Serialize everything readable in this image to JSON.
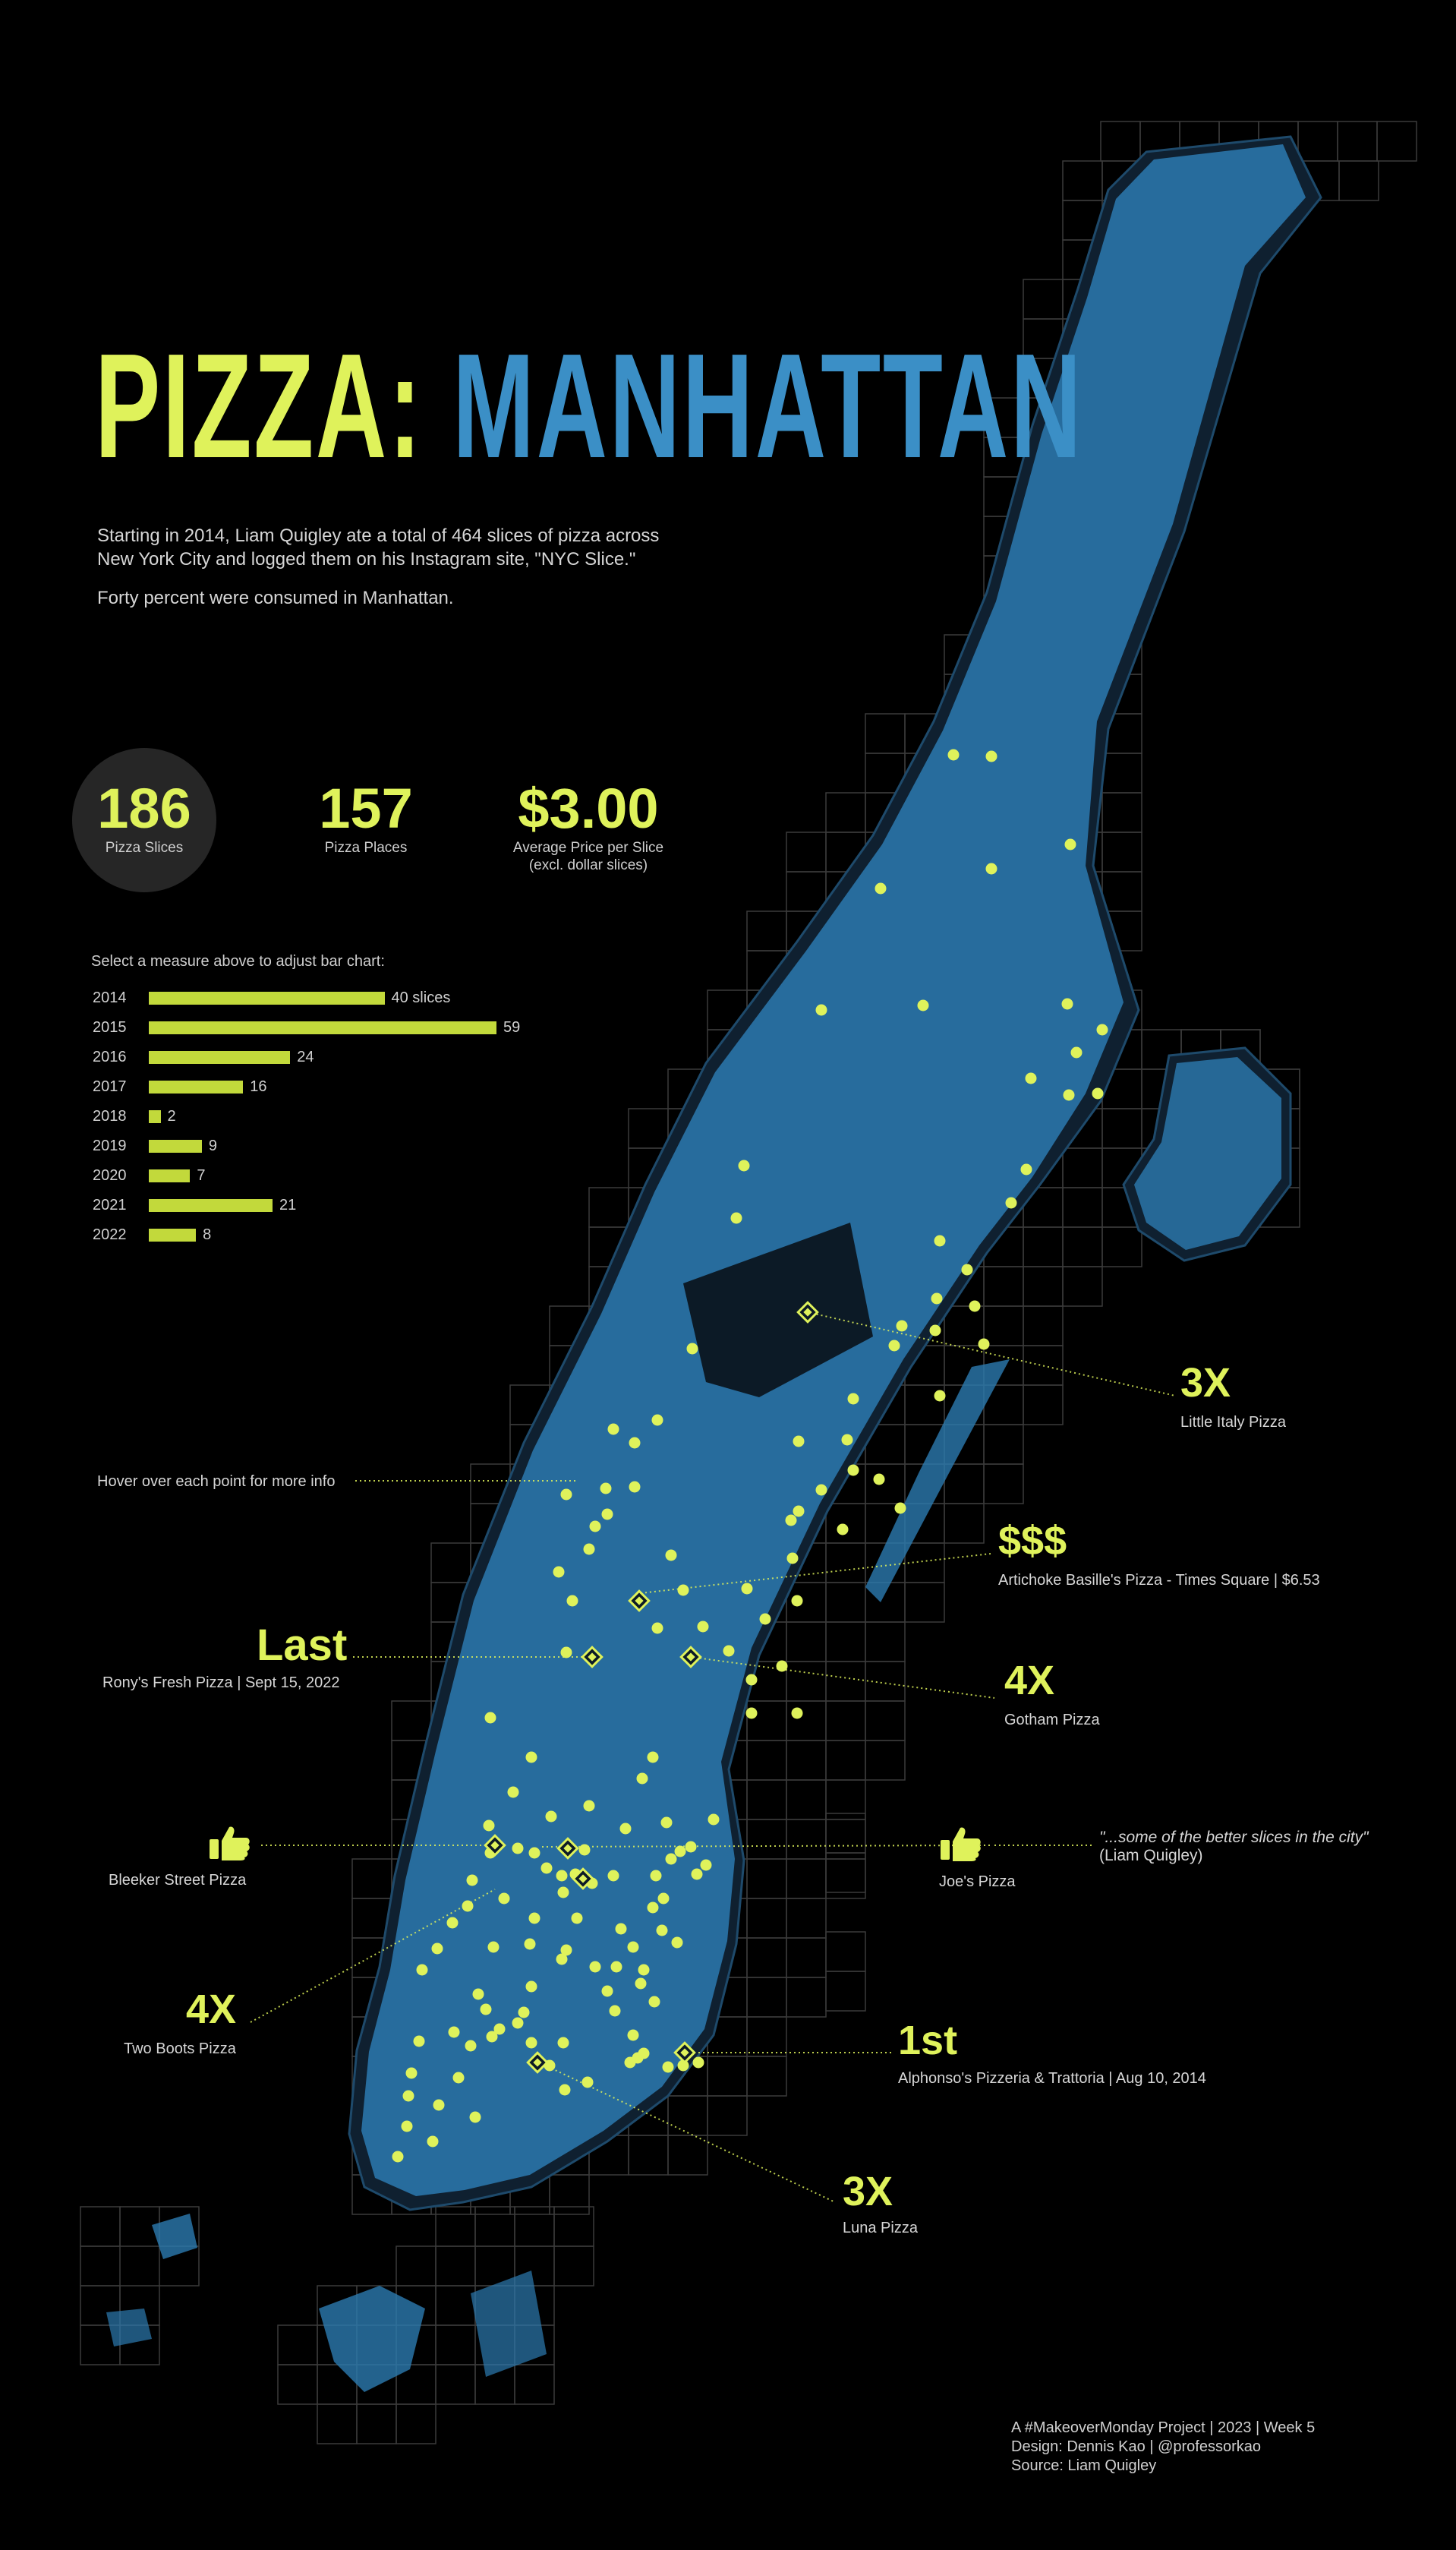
{
  "title": {
    "part1": "PIZZA:",
    "part2": "MANHATTAN"
  },
  "intro": {
    "line1": "Starting in 2014, Liam Quigley ate a total of 464 slices of pizza across",
    "line2": "New York City and logged them on his Instagram site, \"NYC Slice.\"",
    "line3": "Forty percent were consumed in Manhattan."
  },
  "kpis": [
    {
      "value": "186",
      "label": "Pizza Slices",
      "label2": "",
      "selected": true
    },
    {
      "value": "157",
      "label": "Pizza Places",
      "label2": ""
    },
    {
      "value": "$3.00",
      "label": "Average Price per Slice",
      "label2": "(excl. dollar slices)"
    }
  ],
  "bar_prompt": "Select a measure above to adjust bar chart:",
  "chart_data": {
    "type": "bar",
    "orientation": "horizontal",
    "categories": [
      "2014",
      "2015",
      "2016",
      "2017",
      "2018",
      "2019",
      "2020",
      "2021",
      "2022"
    ],
    "values": [
      40,
      59,
      24,
      16,
      2,
      9,
      7,
      21,
      8
    ],
    "value_labels": [
      "40 slices",
      "59",
      "24",
      "16",
      "2",
      "9",
      "7",
      "21",
      "8"
    ],
    "title": "",
    "xlabel": "",
    "ylabel": "",
    "grid": false,
    "bar_color": "#c2d93b"
  },
  "annotations": {
    "hover_hint": "Hover over each point for more info",
    "little_italy": {
      "big": "3X",
      "name": "Little Italy Pizza"
    },
    "artichoke": {
      "big": "$$$",
      "name": "Artichoke Basille's Pizza - Times Square | $6.53"
    },
    "ronys": {
      "big": "Last",
      "name": "Rony's Fresh Pizza | Sept 15, 2022"
    },
    "gotham": {
      "big": "4X",
      "name": "Gotham Pizza"
    },
    "bleeker": {
      "name": "Bleeker Street Pizza",
      "icon": "thumbs-up-icon"
    },
    "joes": {
      "name": "Joe's Pizza",
      "icon": "thumbs-up-icon"
    },
    "quote": {
      "text": "\"...some of the better slices in the city\"",
      "author": "(Liam Quigley)"
    },
    "two_boots": {
      "big": "4X",
      "name": "Two Boots Pizza"
    },
    "alphonsos": {
      "big": "1st",
      "name": "Alphonso's Pizzeria & Trattoria | Aug 10, 2014"
    },
    "luna": {
      "big": "3X",
      "name": "Luna Pizza"
    }
  },
  "credits": {
    "line1": "A #MakeoverMonday Project | 2023 | Week 5",
    "line2": "Design: Dennis Kao | @professorkao",
    "line3": "Source: Liam Quigley"
  },
  "colors": {
    "accent": "#dff25b",
    "water_blue": "#3b8fc6",
    "land_fill": "#0f2030",
    "grid": "#3a3a3a",
    "background": "#000000"
  }
}
